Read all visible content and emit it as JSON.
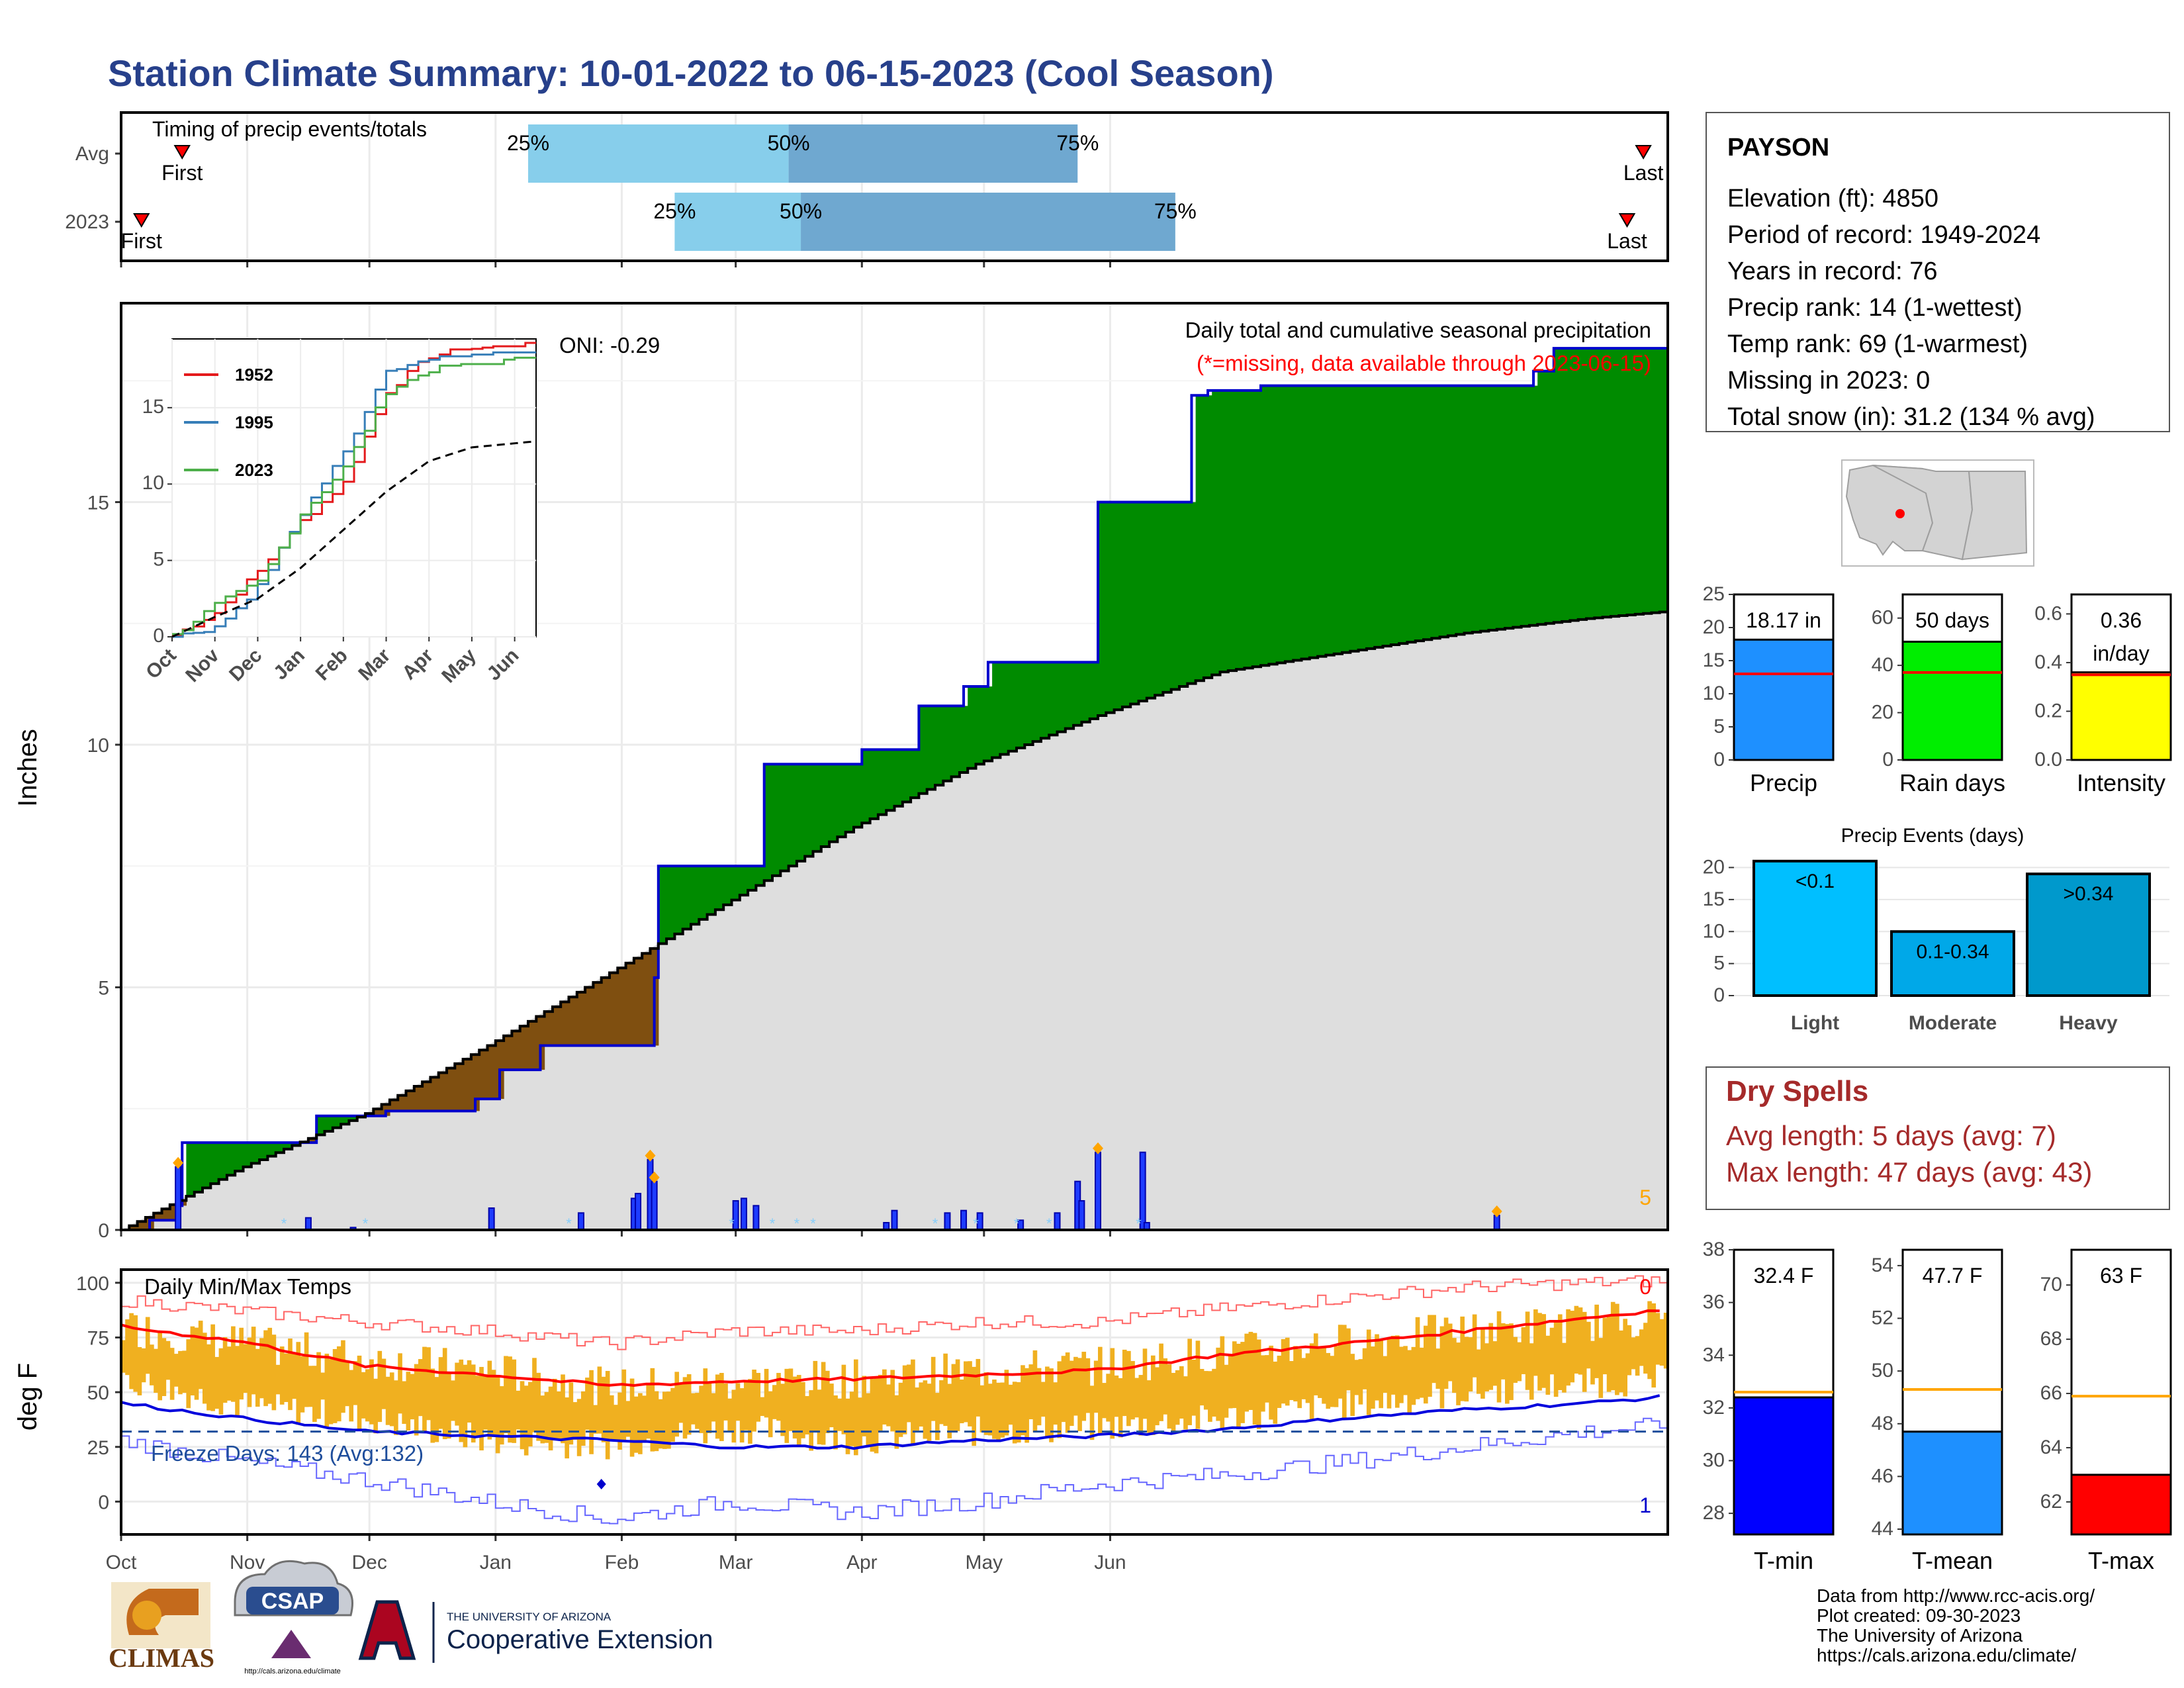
{
  "title": "Station Climate Summary: 10-01-2022 to 06-15-2023 (Cool Season)",
  "timing_panel": {
    "label": "Timing of precip events/totals",
    "rows": [
      {
        "name": "Avg",
        "first_label": "First",
        "last_label": "Last",
        "first": 15,
        "last": 374,
        "q25": 100,
        "q50": 164,
        "q75": 235,
        "q25_label": "25%",
        "q50_label": "50%",
        "q75_label": "75%"
      },
      {
        "name": "2023",
        "first_label": "First",
        "last_label": "Last",
        "first": 5,
        "last": 370,
        "q25": 136,
        "q50": 167,
        "q75": 259,
        "q25_label": "25%",
        "q50_label": "50%",
        "q75_label": "75%"
      }
    ]
  },
  "precip_panel": {
    "ylabel": "Inches",
    "heading": "Daily total and cumulative seasonal precipitation",
    "missing_note": "(*=missing, data available through 2023-06-15)",
    "oni": "ONI: -0.29",
    "corner_count": "5",
    "y_ticks": [
      "0",
      "5",
      "10",
      "15"
    ]
  },
  "temp_panel": {
    "ylabel": "deg F",
    "heading": "Daily Min/Max Temps",
    "freeze_text": "Freeze Days: 143 (Avg:132)",
    "count_top": "0",
    "count_bottom": "1",
    "y_ticks": [
      "0",
      "25",
      "50",
      "75",
      "100"
    ]
  },
  "x_axis": {
    "months": [
      "Oct",
      "Nov",
      "Dec",
      "Jan",
      "Feb",
      "Mar",
      "Apr",
      "May",
      "Jun"
    ]
  },
  "inset": {
    "legend": [
      "1952",
      "1995",
      "2023"
    ],
    "months": [
      "Oct",
      "Nov",
      "Dec",
      "Jan",
      "Feb",
      "Mar",
      "Apr",
      "May",
      "Jun"
    ],
    "y_ticks": [
      "0",
      "5",
      "10",
      "15"
    ]
  },
  "station": {
    "name": "PAYSON",
    "lines": [
      "Elevation (ft): 4850",
      "Period of record: 1949-2024",
      "Years in record: 76",
      "Precip rank: 14 (1-wettest)",
      "Temp rank: 69 (1-warmest)",
      "Missing in 2023: 0",
      "Total snow (in): 31.2 (134 % avg)"
    ]
  },
  "summary_bars": [
    {
      "label": "Precip",
      "value_text": "18.17 in",
      "value": 18.17,
      "avg": 13.0,
      "ymax": 25,
      "color": "#1e90ff",
      "ticks": [
        "0",
        "5",
        "10",
        "15",
        "20",
        "25"
      ]
    },
    {
      "label": "Rain days",
      "value_text": "50 days",
      "value": 50,
      "avg": 37,
      "ymax": 70,
      "color": "#00ee00",
      "ticks": [
        "0",
        "20",
        "40",
        "60"
      ]
    },
    {
      "label": "Intensity",
      "value_text": "0.36",
      "value_text2": "in/day",
      "value": 0.36,
      "avg": 0.35,
      "ymax": 0.68,
      "color": "#ffff00",
      "ticks": [
        "0.0",
        "0.2",
        "0.4",
        "0.6"
      ]
    }
  ],
  "precip_events": {
    "title": "Precip Events (days)",
    "ticks": [
      "0",
      "5",
      "10",
      "15",
      "20"
    ],
    "bars": [
      {
        "label": "Light",
        "inner": "<0.1",
        "value": 21,
        "color": "#00bfff"
      },
      {
        "label": "Moderate",
        "inner": "0.1-0.34",
        "value": 10,
        "color": "#00a8e8"
      },
      {
        "label": "Heavy",
        "inner": ">0.34",
        "value": 19,
        "color": "#0099cc"
      }
    ]
  },
  "dry_spells": {
    "title": "Dry Spells",
    "avg_line": "Avg length: 5 days (avg: 7)",
    "max_line": "Max length: 47 days (avg: 43)"
  },
  "temp_bars": [
    {
      "label": "T-min",
      "value_text": "32.4 F",
      "value": 32.4,
      "avg": 32.6,
      "ymin": 27.2,
      "ymax": 38,
      "color": "#0000ff",
      "ticks": [
        "28",
        "30",
        "32",
        "34",
        "36",
        "38"
      ]
    },
    {
      "label": "T-mean",
      "value_text": "47.7 F",
      "value": 47.7,
      "avg": 49.3,
      "ymin": 43.8,
      "ymax": 54.6,
      "color": "#1e90ff",
      "ticks": [
        "44",
        "46",
        "48",
        "50",
        "52",
        "54"
      ]
    },
    {
      "label": "T-max",
      "value_text": "63 F",
      "value": 63.0,
      "avg": 65.9,
      "ymin": 60.8,
      "ymax": 71.3,
      "color": "#ff0000",
      "ticks": [
        "62",
        "64",
        "66",
        "68",
        "70"
      ]
    }
  ],
  "credits": [
    "Data from http://www.rcc-acis.org/",
    "Plot created: 09-30-2023",
    "The University of Arizona",
    "https://cals.arizona.edu/climate/"
  ],
  "logos": {
    "climas": "CLIMAS",
    "csap": "CSAP",
    "csap_url": "http://cals.arizona.edu/climate",
    "ua_line1": "THE UNIVERSITY OF ARIZONA",
    "ua_line2": "Cooperative Extension"
  },
  "chart_data": {
    "type": "area",
    "series_cumulative_2023": {
      "x_day": [
        0,
        7,
        14,
        15,
        40,
        48,
        60,
        65,
        80,
        87,
        93,
        103,
        127,
        131,
        132,
        153,
        158,
        182,
        195,
        196,
        203,
        207,
        213,
        225,
        240,
        263,
        267,
        280,
        300,
        340,
        347,
        352,
        364,
        380
      ],
      "y_in": [
        0,
        0.2,
        0.5,
        1.8,
        1.8,
        2.35,
        2.35,
        2.45,
        2.45,
        2.7,
        3.3,
        3.8,
        3.8,
        5.2,
        7.5,
        7.5,
        9.6,
        9.9,
        9.9,
        10.8,
        10.8,
        11.2,
        11.7,
        11.7,
        15,
        17.2,
        17.3,
        17.4,
        17.4,
        17.4,
        17.7,
        18.17,
        18.17,
        18.17
      ]
    },
    "series_cumulative_avg": {
      "x_day": [
        0,
        30,
        60,
        90,
        120,
        150,
        180,
        210,
        240,
        270,
        300,
        330,
        360,
        380
      ],
      "y_in": [
        0,
        1.3,
        2.4,
        3.8,
        5.3,
        6.8,
        8.3,
        9.6,
        10.6,
        11.5,
        11.9,
        12.3,
        12.6,
        12.75
      ]
    },
    "daily_precip": {
      "x_day": [
        14,
        46,
        57,
        91,
        113,
        126,
        127,
        130,
        131,
        151,
        153,
        156,
        188,
        190,
        203,
        207,
        211,
        221,
        230,
        235,
        236,
        240,
        251,
        252,
        338
      ],
      "y_in": [
        1.3,
        0.25,
        0.05,
        0.45,
        0.35,
        0.65,
        0.75,
        1.45,
        1.0,
        0.6,
        0.65,
        0.5,
        0.15,
        0.4,
        0.35,
        0.4,
        0.35,
        0.2,
        0.35,
        1.0,
        0.6,
        1.6,
        1.6,
        0.15,
        0.3
      ]
    },
    "temp_series": {
      "x_day": [
        0,
        30,
        60,
        90,
        120,
        150,
        180,
        210,
        240,
        270,
        300,
        330,
        360,
        380
      ],
      "tmax_daily": [
        80,
        72,
        65,
        60,
        52,
        55,
        56,
        60,
        62,
        68,
        73,
        78,
        82,
        85
      ],
      "tmin_daily": [
        50,
        38,
        32,
        22,
        20,
        28,
        22,
        26,
        28,
        32,
        38,
        44,
        48,
        50
      ],
      "tmax_mean": [
        80,
        73,
        62,
        58,
        53,
        55,
        56,
        58,
        60,
        67,
        72,
        78,
        84,
        88
      ],
      "tmin_mean": [
        45,
        38,
        32,
        30,
        28,
        25,
        25,
        28,
        30,
        33,
        38,
        42,
        45,
        48
      ],
      "tmax_record": [
        92,
        87,
        82,
        78,
        72,
        78,
        78,
        82,
        82,
        88,
        93,
        98,
        100,
        101
      ],
      "tmin_record": [
        28,
        18,
        10,
        0,
        -8,
        0,
        -5,
        0,
        8,
        12,
        18,
        25,
        32,
        35
      ],
      "freeze_line": 32
    },
    "inset_cumulative": {
      "x_month": [
        0,
        1,
        2,
        3,
        4,
        5,
        6,
        7,
        8.5
      ],
      "y_1952": [
        0,
        1.5,
        4.2,
        7.5,
        10,
        16,
        18.3,
        18.8,
        19
      ],
      "y_1995": [
        0,
        0.5,
        3.2,
        8,
        12,
        17.5,
        18,
        18.4,
        18.4
      ],
      "y_2023": [
        0,
        2,
        3.5,
        8,
        11,
        16,
        17.4,
        17.7,
        18.2
      ],
      "y_avg": [
        0,
        1.3,
        2.5,
        4.5,
        7,
        9.5,
        11.5,
        12.4,
        12.8
      ]
    }
  }
}
